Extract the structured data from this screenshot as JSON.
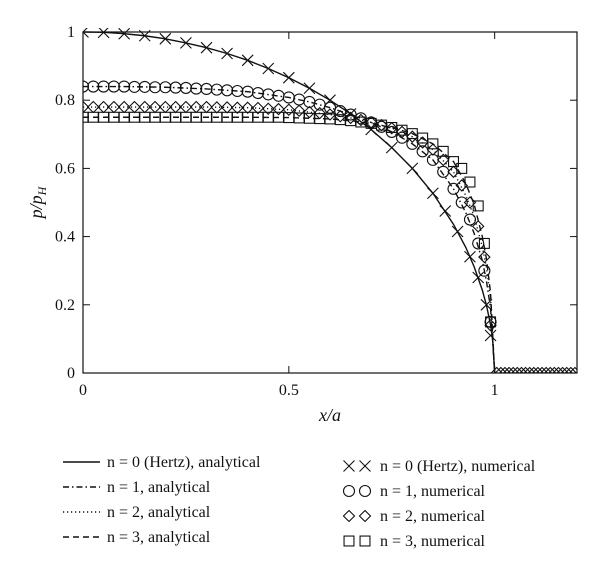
{
  "chart_data": {
    "type": "line",
    "xlabel": "x/a",
    "ylabel": "p/p_H",
    "xlim": [
      0,
      1.2
    ],
    "ylim": [
      0,
      1
    ],
    "x_ticks": [
      "0",
      "0.5",
      "1"
    ],
    "y_ticks": [
      "0",
      "0.2",
      "0.4",
      "0.6",
      "0.8",
      "1"
    ],
    "grid": false,
    "legend_placement": "below",
    "series": [
      {
        "name": "n = 0 (Hertz), analytical",
        "kind": "analytical",
        "line": "solid",
        "x": [
          0,
          0.05,
          0.1,
          0.15,
          0.2,
          0.25,
          0.3,
          0.35,
          0.4,
          0.45,
          0.5,
          0.55,
          0.6,
          0.65,
          0.7,
          0.75,
          0.8,
          0.85,
          0.9,
          0.93,
          0.95,
          0.97,
          0.98,
          0.99,
          0.995,
          1.0
        ],
        "values": [
          1.0,
          0.999,
          0.995,
          0.989,
          0.98,
          0.968,
          0.954,
          0.937,
          0.917,
          0.893,
          0.866,
          0.835,
          0.8,
          0.76,
          0.714,
          0.661,
          0.6,
          0.527,
          0.436,
          0.368,
          0.312,
          0.243,
          0.199,
          0.141,
          0.1,
          0.0
        ]
      },
      {
        "name": "n = 1, analytical",
        "kind": "analytical",
        "line": "dash-dot",
        "x": [
          0,
          0.1,
          0.2,
          0.3,
          0.4,
          0.5,
          0.55,
          0.6,
          0.65,
          0.7,
          0.75,
          0.8,
          0.85,
          0.9,
          0.93,
          0.95,
          0.97,
          0.98,
          0.99,
          1.0
        ],
        "values": [
          0.84,
          0.84,
          0.838,
          0.833,
          0.825,
          0.808,
          0.795,
          0.778,
          0.758,
          0.735,
          0.707,
          0.672,
          0.625,
          0.54,
          0.47,
          0.41,
          0.33,
          0.27,
          0.19,
          0.0
        ]
      },
      {
        "name": "n = 2, analytical",
        "kind": "analytical",
        "line": "dotted",
        "x": [
          0,
          0.1,
          0.2,
          0.3,
          0.4,
          0.5,
          0.55,
          0.6,
          0.65,
          0.7,
          0.75,
          0.8,
          0.85,
          0.9,
          0.93,
          0.95,
          0.97,
          0.98,
          0.99,
          1.0
        ],
        "values": [
          0.78,
          0.78,
          0.78,
          0.78,
          0.778,
          0.772,
          0.765,
          0.758,
          0.748,
          0.735,
          0.718,
          0.693,
          0.655,
          0.59,
          0.52,
          0.46,
          0.37,
          0.31,
          0.22,
          0.0
        ]
      },
      {
        "name": "n = 3, analytical",
        "kind": "analytical",
        "line": "dashed",
        "x": [
          0,
          0.1,
          0.2,
          0.3,
          0.4,
          0.5,
          0.55,
          0.6,
          0.65,
          0.7,
          0.75,
          0.8,
          0.85,
          0.9,
          0.93,
          0.95,
          0.97,
          0.98,
          0.99,
          1.0
        ],
        "values": [
          0.75,
          0.75,
          0.75,
          0.75,
          0.75,
          0.749,
          0.747,
          0.745,
          0.74,
          0.732,
          0.72,
          0.702,
          0.672,
          0.62,
          0.555,
          0.495,
          0.4,
          0.335,
          0.235,
          0.0
        ]
      },
      {
        "name": "n = 0 (Hertz), numerical",
        "kind": "numerical",
        "marker": "cross",
        "x": [
          0.0,
          0.05,
          0.1,
          0.15,
          0.2,
          0.25,
          0.3,
          0.35,
          0.4,
          0.45,
          0.5,
          0.55,
          0.6,
          0.65,
          0.7,
          0.75,
          0.8,
          0.85,
          0.88,
          0.91,
          0.94,
          0.96,
          0.98,
          0.99
        ],
        "values": [
          1.0,
          0.999,
          0.995,
          0.989,
          0.98,
          0.968,
          0.954,
          0.937,
          0.917,
          0.893,
          0.866,
          0.835,
          0.8,
          0.76,
          0.714,
          0.661,
          0.6,
          0.527,
          0.475,
          0.415,
          0.341,
          0.28,
          0.2,
          0.11
        ]
      },
      {
        "name": "n = 1, numerical",
        "kind": "numerical",
        "marker": "circle",
        "x": [
          0.0,
          0.025,
          0.05,
          0.075,
          0.1,
          0.125,
          0.15,
          0.175,
          0.2,
          0.225,
          0.25,
          0.275,
          0.3,
          0.325,
          0.35,
          0.375,
          0.4,
          0.425,
          0.45,
          0.475,
          0.5,
          0.525,
          0.55,
          0.575,
          0.6,
          0.625,
          0.65,
          0.675,
          0.7,
          0.725,
          0.75,
          0.775,
          0.8,
          0.825,
          0.85,
          0.875,
          0.9,
          0.92,
          0.94,
          0.96,
          0.975,
          0.99
        ],
        "values": [
          0.84,
          0.84,
          0.84,
          0.84,
          0.84,
          0.839,
          0.839,
          0.838,
          0.838,
          0.837,
          0.836,
          0.834,
          0.833,
          0.831,
          0.829,
          0.827,
          0.825,
          0.821,
          0.817,
          0.813,
          0.808,
          0.802,
          0.795,
          0.787,
          0.778,
          0.768,
          0.758,
          0.747,
          0.735,
          0.722,
          0.707,
          0.69,
          0.672,
          0.65,
          0.625,
          0.59,
          0.54,
          0.5,
          0.45,
          0.38,
          0.3,
          0.15
        ]
      },
      {
        "name": "n = 2, numerical",
        "kind": "numerical",
        "marker": "diamond",
        "x": [
          0.0,
          0.025,
          0.05,
          0.075,
          0.1,
          0.125,
          0.15,
          0.175,
          0.2,
          0.225,
          0.25,
          0.275,
          0.3,
          0.325,
          0.35,
          0.375,
          0.4,
          0.425,
          0.45,
          0.475,
          0.5,
          0.525,
          0.55,
          0.575,
          0.6,
          0.625,
          0.65,
          0.675,
          0.7,
          0.725,
          0.75,
          0.775,
          0.8,
          0.825,
          0.85,
          0.875,
          0.9,
          0.92,
          0.94,
          0.96,
          0.975,
          0.99,
          1.005,
          1.015,
          1.025,
          1.035,
          1.045,
          1.055,
          1.065,
          1.075,
          1.085,
          1.095,
          1.105,
          1.115,
          1.125,
          1.135,
          1.145,
          1.155,
          1.165,
          1.175,
          1.185,
          1.195
        ],
        "values": [
          0.78,
          0.78,
          0.78,
          0.78,
          0.78,
          0.78,
          0.78,
          0.78,
          0.78,
          0.78,
          0.78,
          0.78,
          0.78,
          0.779,
          0.779,
          0.778,
          0.778,
          0.777,
          0.775,
          0.774,
          0.772,
          0.769,
          0.765,
          0.762,
          0.758,
          0.753,
          0.748,
          0.742,
          0.735,
          0.727,
          0.718,
          0.707,
          0.693,
          0.676,
          0.655,
          0.625,
          0.59,
          0.55,
          0.5,
          0.43,
          0.34,
          0.14,
          0.0,
          0.0,
          0.0,
          0.0,
          0.0,
          0.0,
          0.0,
          0.0,
          0.0,
          0.0,
          0.0,
          0.0,
          0.0,
          0.0,
          0.0,
          0.0,
          0.0,
          0.0,
          0.0,
          0.0
        ]
      },
      {
        "name": "n = 3, numerical",
        "kind": "numerical",
        "marker": "square",
        "x": [
          0.0,
          0.025,
          0.05,
          0.075,
          0.1,
          0.125,
          0.15,
          0.175,
          0.2,
          0.225,
          0.25,
          0.275,
          0.3,
          0.325,
          0.35,
          0.375,
          0.4,
          0.425,
          0.45,
          0.475,
          0.5,
          0.525,
          0.55,
          0.575,
          0.6,
          0.625,
          0.65,
          0.675,
          0.7,
          0.725,
          0.75,
          0.775,
          0.8,
          0.825,
          0.85,
          0.875,
          0.9,
          0.92,
          0.94,
          0.96,
          0.975,
          0.99
        ],
        "values": [
          0.75,
          0.75,
          0.75,
          0.75,
          0.75,
          0.75,
          0.75,
          0.75,
          0.75,
          0.75,
          0.75,
          0.75,
          0.75,
          0.75,
          0.75,
          0.75,
          0.75,
          0.75,
          0.75,
          0.75,
          0.749,
          0.748,
          0.747,
          0.746,
          0.745,
          0.743,
          0.74,
          0.736,
          0.732,
          0.727,
          0.72,
          0.712,
          0.702,
          0.689,
          0.672,
          0.65,
          0.62,
          0.6,
          0.56,
          0.49,
          0.38,
          0.15
        ]
      }
    ]
  }
}
